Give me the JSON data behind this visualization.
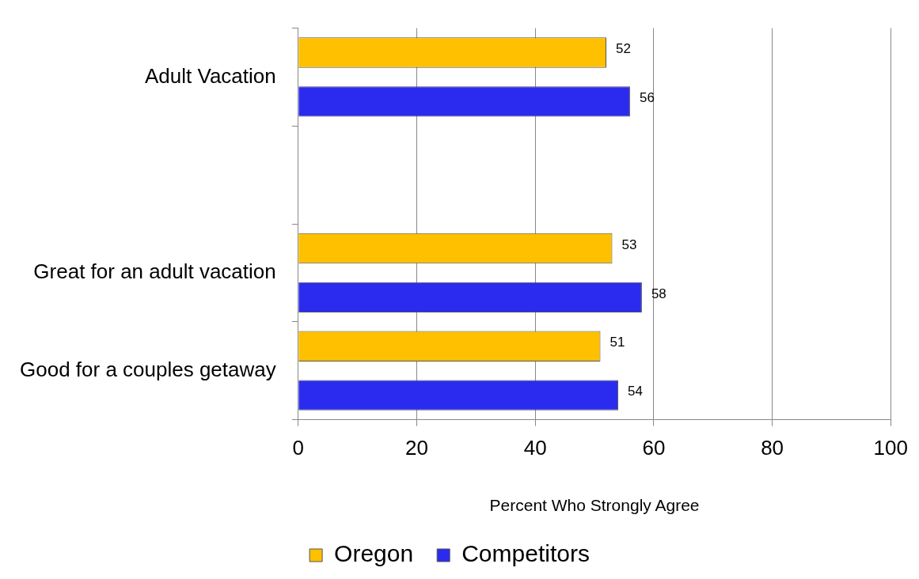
{
  "chart_data": {
    "type": "bar",
    "orientation": "horizontal",
    "categories": [
      "Adult Vacation",
      null,
      "Great for an adult vacation",
      "Good for a couples getaway"
    ],
    "series": [
      {
        "name": "Oregon",
        "color": "#ffc000",
        "values": [
          52,
          null,
          53,
          51
        ]
      },
      {
        "name": "Competitors",
        "color": "#2b2bef",
        "values": [
          56,
          null,
          58,
          54
        ]
      }
    ],
    "xlabel": "Percent Who Strongly Agree",
    "xlim": [
      0,
      100
    ],
    "xticks": [
      0,
      20,
      40,
      60,
      80,
      100
    ],
    "grid": "x",
    "legend": "bottom",
    "data_labels": true
  }
}
